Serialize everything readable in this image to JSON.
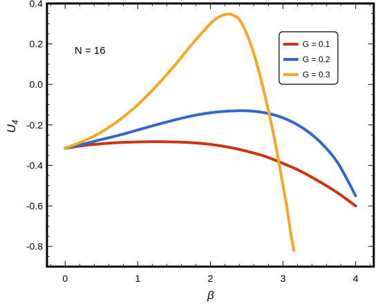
{
  "chart_data": {
    "type": "line",
    "xlabel": "β",
    "ylabel_main": "U",
    "ylabel_sub": "4",
    "xlim": [
      -0.25,
      4.25
    ],
    "ylim": [
      -0.9,
      0.4
    ],
    "xticks": [
      0,
      1,
      2,
      3,
      4
    ],
    "yticks": [
      0.4,
      0.2,
      0.0,
      -0.2,
      -0.4,
      -0.6,
      -0.8
    ],
    "ytick_labels": [
      "0.4",
      "0.2",
      "0.0",
      "-0.2",
      "-0.4",
      "-0.6",
      "-0.8"
    ],
    "annotation": "N = 16",
    "legend_position": "top-right",
    "series": [
      {
        "name": "G = 0.1",
        "color": "#cc3311",
        "x": [
          0,
          0.25,
          0.5,
          0.75,
          1.0,
          1.25,
          1.5,
          1.75,
          2.0,
          2.25,
          2.5,
          2.75,
          3.0,
          3.25,
          3.5,
          3.75,
          4.0
        ],
        "y": [
          -0.315,
          -0.302,
          -0.293,
          -0.287,
          -0.284,
          -0.283,
          -0.284,
          -0.288,
          -0.296,
          -0.31,
          -0.33,
          -0.355,
          -0.39,
          -0.43,
          -0.48,
          -0.535,
          -0.6
        ]
      },
      {
        "name": "G = 0.2",
        "color": "#3366cc",
        "x": [
          0,
          0.25,
          0.5,
          0.75,
          1.0,
          1.25,
          1.5,
          1.75,
          2.0,
          2.25,
          2.5,
          2.75,
          3.0,
          3.25,
          3.5,
          3.75,
          4.0
        ],
        "y": [
          -0.315,
          -0.295,
          -0.272,
          -0.25,
          -0.225,
          -0.2,
          -0.176,
          -0.155,
          -0.14,
          -0.132,
          -0.13,
          -0.14,
          -0.165,
          -0.21,
          -0.28,
          -0.385,
          -0.55
        ]
      },
      {
        "name": "G = 0.3",
        "color": "#f5a623",
        "x": [
          0,
          0.25,
          0.5,
          0.75,
          1.0,
          1.25,
          1.5,
          1.75,
          2.0,
          2.1,
          2.2,
          2.25,
          2.3,
          2.4,
          2.5,
          2.6,
          2.7,
          2.8,
          2.9,
          3.0,
          3.05,
          3.1,
          3.15
        ],
        "y": [
          -0.315,
          -0.28,
          -0.235,
          -0.175,
          -0.1,
          -0.01,
          0.09,
          0.2,
          0.3,
          0.33,
          0.345,
          0.347,
          0.344,
          0.32,
          0.25,
          0.15,
          0.02,
          -0.13,
          -0.3,
          -0.5,
          -0.6,
          -0.72,
          -0.82
        ]
      }
    ]
  }
}
